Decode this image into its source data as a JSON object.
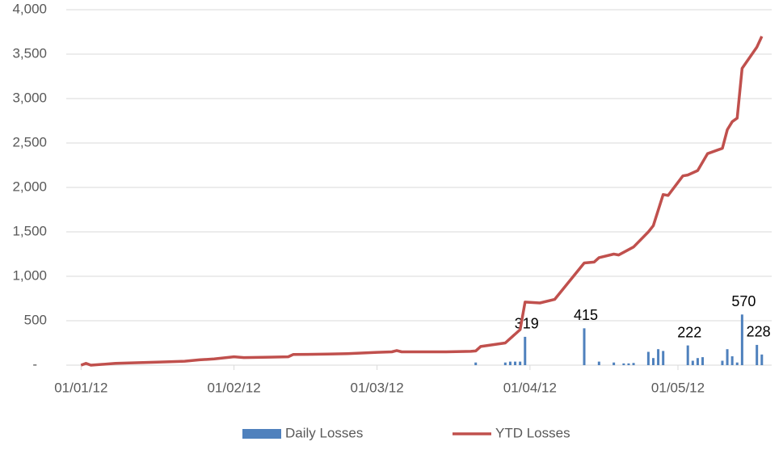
{
  "chart_data": {
    "type": "bar-line",
    "xlim": [
      "2011-12-29",
      "2012-05-20"
    ],
    "xticks": [
      {
        "value": "2012-01-01",
        "label": "01/01/12"
      },
      {
        "value": "2012-02-01",
        "label": "01/02/12"
      },
      {
        "value": "2012-03-01",
        "label": "01/03/12"
      },
      {
        "value": "2012-04-01",
        "label": "01/04/12"
      },
      {
        "value": "2012-05-01",
        "label": "01/05/12"
      }
    ],
    "ylim": [
      0,
      4000
    ],
    "yticks": [
      {
        "value": 0,
        "label": "-"
      },
      500,
      {
        "value": 1000,
        "label": "1,000"
      },
      {
        "value": 1500,
        "label": "1,500"
      },
      {
        "value": 2000,
        "label": "2,000"
      },
      {
        "value": 2500,
        "label": "2,500"
      },
      {
        "value": 3000,
        "label": "3,000"
      },
      {
        "value": 3500,
        "label": "3,500"
      },
      {
        "value": 4000,
        "label": "4,000"
      }
    ],
    "grid": true,
    "legend": "bottom",
    "series": [
      {
        "name": "Daily Losses",
        "type": "bar",
        "color": "#4f81bd",
        "x": [
          "2012-03-21",
          "2012-03-27",
          "2012-03-28",
          "2012-03-29",
          "2012-03-30",
          "2012-03-31",
          "2012-04-12",
          "2012-04-15",
          "2012-04-18",
          "2012-04-20",
          "2012-04-21",
          "2012-04-22",
          "2012-04-25",
          "2012-04-26",
          "2012-04-27",
          "2012-04-28",
          "2012-05-03",
          "2012-05-04",
          "2012-05-05",
          "2012-05-06",
          "2012-05-10",
          "2012-05-11",
          "2012-05-12",
          "2012-05-13",
          "2012-05-14",
          "2012-05-17",
          "2012-05-18"
        ],
        "values": [
          30,
          30,
          40,
          40,
          40,
          319,
          415,
          40,
          30,
          20,
          20,
          25,
          150,
          80,
          180,
          160,
          222,
          50,
          80,
          90,
          50,
          180,
          100,
          30,
          570,
          228,
          120
        ],
        "value_labels": [
          null,
          null,
          null,
          null,
          null,
          "319",
          "415",
          null,
          null,
          null,
          null,
          null,
          null,
          null,
          null,
          null,
          "222",
          null,
          null,
          null,
          null,
          null,
          null,
          null,
          "570",
          "228",
          null
        ]
      },
      {
        "name": "YTD Losses",
        "type": "line",
        "color": "#c0504d",
        "x": [
          "2012-01-01",
          "2012-01-02",
          "2012-01-03",
          "2012-01-08",
          "2012-01-17",
          "2012-01-22",
          "2012-01-25",
          "2012-01-28",
          "2012-02-01",
          "2012-02-03",
          "2012-02-08",
          "2012-02-12",
          "2012-02-13",
          "2012-02-20",
          "2012-02-24",
          "2012-03-01",
          "2012-03-04",
          "2012-03-05",
          "2012-03-06",
          "2012-03-15",
          "2012-03-20",
          "2012-03-21",
          "2012-03-22",
          "2012-03-27",
          "2012-03-30",
          "2012-03-31",
          "2012-04-03",
          "2012-04-06",
          "2012-04-12",
          "2012-04-14",
          "2012-04-15",
          "2012-04-18",
          "2012-04-19",
          "2012-04-22",
          "2012-04-25",
          "2012-04-26",
          "2012-04-28",
          "2012-04-29",
          "2012-05-02",
          "2012-05-03",
          "2012-05-05",
          "2012-05-07",
          "2012-05-10",
          "2012-05-11",
          "2012-05-12",
          "2012-05-13",
          "2012-05-14",
          "2012-05-17",
          "2012-05-18"
        ],
        "values": [
          0,
          20,
          0,
          20,
          35,
          45,
          60,
          70,
          95,
          85,
          90,
          95,
          120,
          125,
          130,
          145,
          150,
          165,
          150,
          150,
          155,
          160,
          210,
          250,
          400,
          710,
          700,
          740,
          1150,
          1160,
          1210,
          1250,
          1240,
          1330,
          1500,
          1570,
          1920,
          1910,
          2130,
          2140,
          2190,
          2380,
          2440,
          2650,
          2740,
          2780,
          3340,
          3580,
          3700
        ]
      }
    ]
  }
}
